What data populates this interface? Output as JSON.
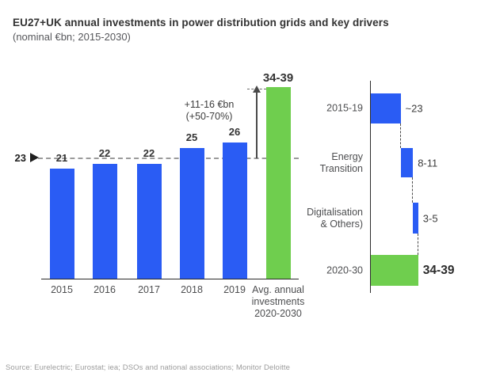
{
  "header": {
    "title": "EU27+UK annual investments in power distribution grids and key drivers",
    "subtitle": "(nominal €bn; 2015-2030)"
  },
  "colors": {
    "blue": "#2A5CF4",
    "green": "#6FCE4E",
    "text_dark": "#3C3C3C",
    "text_medium": "#4D4E50",
    "dashed": "#9B9B9B",
    "axis": "#2B2B2B",
    "arrow": "#4A4A4A",
    "source": "#9B9B9B"
  },
  "chart_data": [
    {
      "type": "bar",
      "title": "EU27+UK annual investments in power distribution grids",
      "categories": [
        "2015",
        "2016",
        "2017",
        "2018",
        "2019",
        "Avg. annual\ninvestments\n2020-2030"
      ],
      "values": [
        21,
        22,
        22,
        25,
        26,
        36.5
      ],
      "bar_labels": [
        "21",
        "22",
        "22",
        "25",
        "26",
        "34-39"
      ],
      "bar_colors": [
        "blue",
        "blue",
        "blue",
        "blue",
        "blue",
        "green"
      ],
      "green_bar_range": [
        34,
        39
      ],
      "reference_line": {
        "value": 23,
        "label": "23"
      },
      "annotation": {
        "lines": [
          "+11-16 €bn",
          "(+50-70%)"
        ]
      },
      "xlabel": "",
      "ylabel": "nominal €bn",
      "ylim": [
        0,
        42
      ],
      "grid": false
    },
    {
      "type": "waterfall",
      "orientation": "horizontal-cascade",
      "rows": [
        {
          "label": "2015-19",
          "value_label": "~23",
          "range": [
            23,
            23
          ],
          "start": 0,
          "end": 23,
          "color": "blue",
          "bold": false
        },
        {
          "label": "Energy\nTransition",
          "value_label": "8-11",
          "range": [
            8,
            11
          ],
          "start": 23,
          "end": 32.5,
          "color": "blue",
          "bold": false
        },
        {
          "label": "Digitalisation\n& Others)",
          "value_label": "3-5",
          "range": [
            3,
            5
          ],
          "start": 32.5,
          "end": 36.5,
          "color": "blue",
          "bold": false
        },
        {
          "label": "2020-30",
          "value_label": "34-39",
          "range": [
            34,
            39
          ],
          "start": 0,
          "end": 36.5,
          "color": "green",
          "bold": true
        }
      ],
      "legend": null,
      "grid": false
    }
  ],
  "source": "Source: Eurelectric; Eurostat; iea; DSOs and national associations; Monitor Deloitte"
}
